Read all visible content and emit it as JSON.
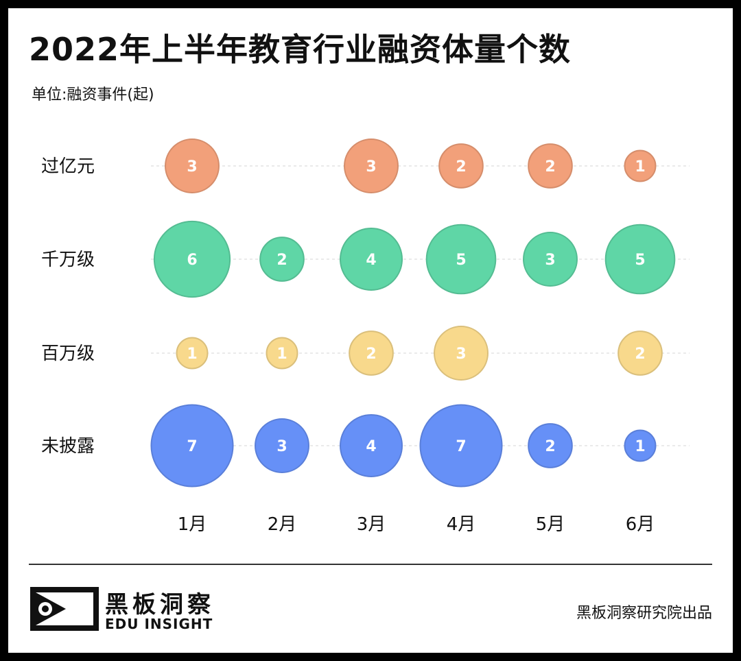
{
  "title": "2022年上半年教育行业融资体量个数",
  "unit_label": "单位:融资事件(起)",
  "footer": {
    "brand_cn": "黑板洞察",
    "brand_en": "EDU INSIGHT",
    "credit": "黑板洞察研究院出品"
  },
  "chart_data": {
    "type": "bubble",
    "title": "2022年上半年教育行业融资体量个数",
    "unit": "单位:融资事件(起)",
    "x_categories": [
      "1月",
      "2月",
      "3月",
      "4月",
      "5月",
      "6月"
    ],
    "y_categories": [
      "过亿元",
      "千万级",
      "百万级",
      "未披露"
    ],
    "series": [
      {
        "name": "过亿元",
        "color": "#f2a07a",
        "values": [
          3,
          null,
          3,
          2,
          2,
          1
        ]
      },
      {
        "name": "千万级",
        "color": "#5fd6a6",
        "values": [
          6,
          2,
          4,
          5,
          3,
          5
        ]
      },
      {
        "name": "百万级",
        "color": "#f8d98c",
        "values": [
          1,
          1,
          2,
          3,
          null,
          2
        ]
      },
      {
        "name": "未披露",
        "color": "#6690f7",
        "values": [
          7,
          3,
          4,
          7,
          2,
          1
        ]
      }
    ],
    "grid": "dashed horizontal lines"
  }
}
